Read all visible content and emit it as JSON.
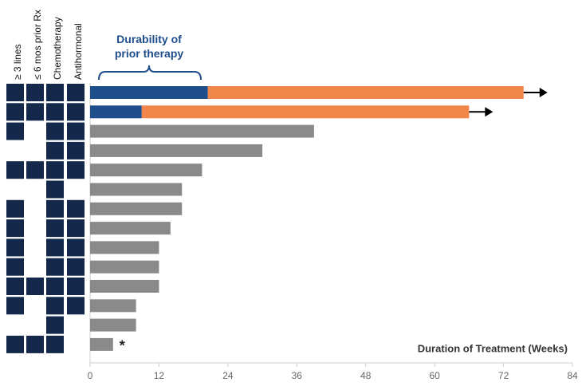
{
  "chart_data": {
    "type": "swimmer",
    "xlabel": "Duration of Treatment (Weeks)",
    "annotation": "Durability of prior therapy",
    "xlim": [
      0,
      84
    ],
    "xticks": [
      0,
      12,
      24,
      36,
      48,
      60,
      72,
      84
    ],
    "series": [
      {
        "color": "#1f4e8c",
        "values": [
          20.5,
          9,
          null,
          null,
          null,
          null,
          null,
          null,
          null,
          null,
          null,
          null,
          null,
          null
        ]
      },
      {
        "color": "#f0864a",
        "values": [
          55,
          57,
          null,
          null,
          null,
          null,
          null,
          null,
          null,
          null,
          null,
          null,
          null,
          null
        ]
      },
      {
        "color": "#8a8a8a",
        "values": [
          null,
          null,
          39,
          30,
          19.5,
          16,
          16,
          14,
          12,
          12,
          12,
          8,
          8,
          4
        ]
      }
    ],
    "arrows": [
      true,
      true,
      false,
      false,
      false,
      false,
      false,
      false,
      false,
      false,
      false,
      false,
      false,
      false
    ],
    "last_row_marker": "*",
    "criteria": {
      "color": "#13284a",
      "columns": [
        "≥ 3 lines",
        "≤ 6 mos prior Rx",
        "Chemotherapy",
        "Antihormonal"
      ],
      "rows": [
        [
          true,
          true,
          true,
          true
        ],
        [
          true,
          true,
          true,
          true
        ],
        [
          true,
          false,
          true,
          true
        ],
        [
          false,
          false,
          true,
          true
        ],
        [
          true,
          true,
          true,
          true
        ],
        [
          false,
          false,
          true,
          false
        ],
        [
          true,
          false,
          true,
          true
        ],
        [
          true,
          false,
          true,
          true
        ],
        [
          true,
          false,
          true,
          true
        ],
        [
          true,
          false,
          true,
          true
        ],
        [
          true,
          true,
          true,
          true
        ],
        [
          true,
          false,
          true,
          true
        ],
        [
          false,
          false,
          true,
          false
        ],
        [
          true,
          true,
          true,
          false
        ]
      ]
    }
  }
}
